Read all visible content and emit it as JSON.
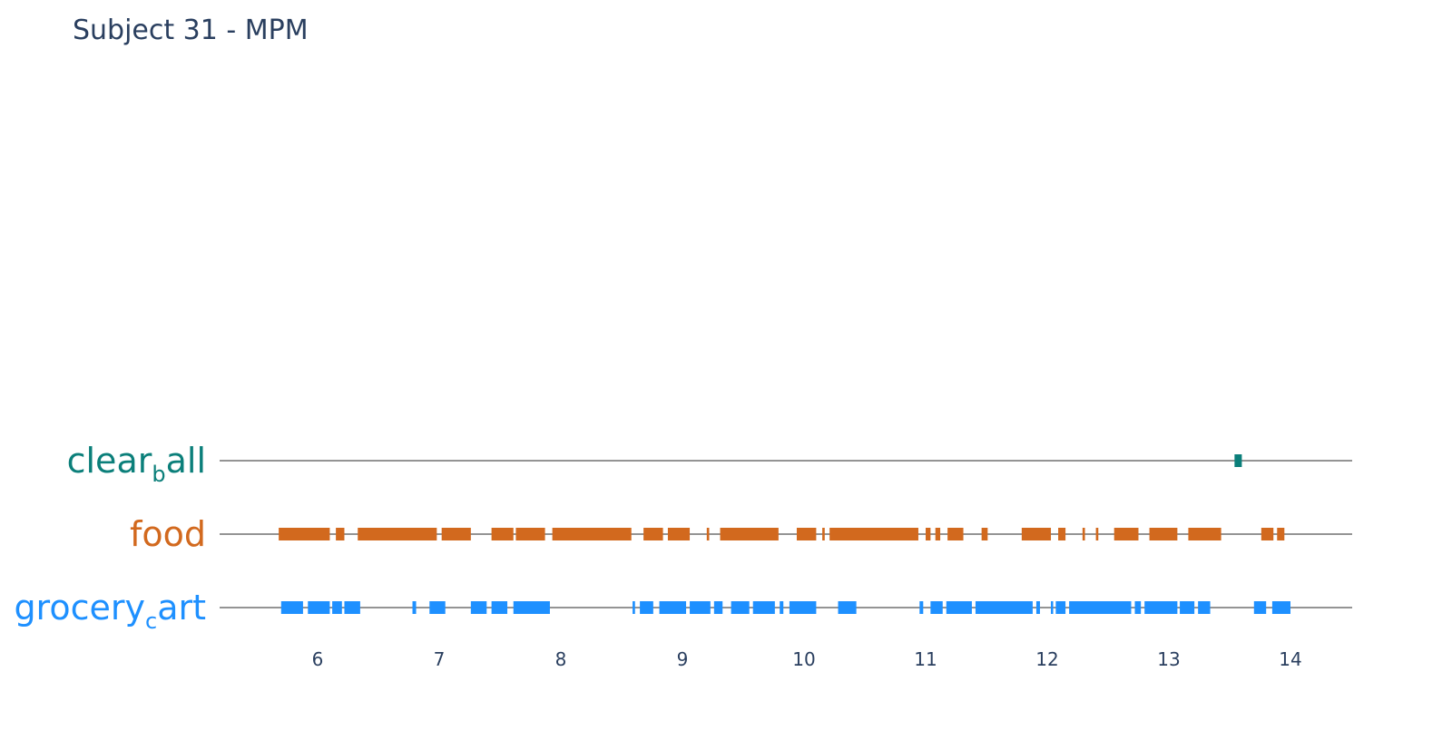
{
  "chart_data": {
    "type": "timeline",
    "title": "Subject 31 - MPM",
    "xlim": [
      5.3,
      14.5
    ],
    "x_ticks": [
      6,
      7,
      8,
      9,
      10,
      11,
      12,
      13,
      14
    ],
    "grid": false,
    "categories": [
      {
        "name": "clear_ball",
        "label_main": "clear",
        "label_sub": "b",
        "label_tail": "all",
        "color": "#0b7f7a",
        "segments": [
          [
            13.54,
            13.6
          ]
        ]
      },
      {
        "name": "food",
        "label_main": "food",
        "label_sub": "",
        "label_tail": "",
        "color": "#d2691e",
        "segments": [
          [
            5.68,
            6.1
          ],
          [
            6.15,
            6.22
          ],
          [
            6.33,
            6.98
          ],
          [
            7.02,
            7.26
          ],
          [
            7.43,
            7.61
          ],
          [
            7.63,
            7.87
          ],
          [
            7.93,
            8.58
          ],
          [
            8.68,
            8.84
          ],
          [
            8.88,
            9.06
          ],
          [
            9.2,
            9.22
          ],
          [
            9.31,
            9.79
          ],
          [
            9.94,
            10.1
          ],
          [
            10.15,
            10.17
          ],
          [
            10.21,
            10.94
          ],
          [
            11.0,
            11.04
          ],
          [
            11.08,
            11.12
          ],
          [
            11.18,
            11.31
          ],
          [
            11.46,
            11.51
          ],
          [
            11.79,
            12.03
          ],
          [
            12.09,
            12.15
          ],
          [
            12.29,
            12.31
          ],
          [
            12.4,
            12.42
          ],
          [
            12.55,
            12.75
          ],
          [
            12.84,
            13.07
          ],
          [
            13.16,
            13.43
          ],
          [
            13.76,
            13.86
          ],
          [
            13.89,
            13.95
          ]
        ]
      },
      {
        "name": "grocery_cart",
        "label_main": "grocery",
        "label_sub": "c",
        "label_tail": "art",
        "color": "#1e90ff",
        "segments": [
          [
            5.7,
            5.88
          ],
          [
            5.92,
            6.1
          ],
          [
            6.12,
            6.2
          ],
          [
            6.22,
            6.35
          ],
          [
            6.78,
            6.81
          ],
          [
            6.92,
            7.05
          ],
          [
            7.26,
            7.39
          ],
          [
            7.43,
            7.56
          ],
          [
            7.61,
            7.91
          ],
          [
            8.59,
            8.61
          ],
          [
            8.65,
            8.76
          ],
          [
            8.81,
            9.03
          ],
          [
            9.06,
            9.23
          ],
          [
            9.26,
            9.33
          ],
          [
            9.4,
            9.55
          ],
          [
            9.58,
            9.76
          ],
          [
            9.8,
            9.83
          ],
          [
            9.88,
            10.1
          ],
          [
            10.28,
            10.43
          ],
          [
            10.95,
            10.98
          ],
          [
            11.04,
            11.14
          ],
          [
            11.17,
            11.38
          ],
          [
            11.41,
            11.88
          ],
          [
            11.91,
            11.94
          ],
          [
            12.03,
            12.04
          ],
          [
            12.07,
            12.15
          ],
          [
            12.18,
            12.69
          ],
          [
            12.72,
            12.77
          ],
          [
            12.8,
            13.07
          ],
          [
            13.09,
            13.21
          ],
          [
            13.24,
            13.34
          ],
          [
            13.7,
            13.8
          ],
          [
            13.85,
            14.0
          ]
        ]
      }
    ]
  }
}
